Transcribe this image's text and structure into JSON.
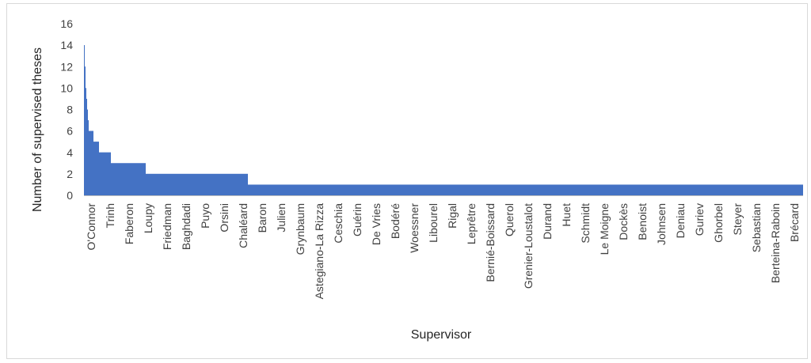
{
  "chart_data": {
    "type": "area",
    "xlabel": "Supervisor",
    "ylabel": "Number of supervised theses",
    "ylim": [
      0,
      16
    ],
    "yticks": [
      0,
      2,
      4,
      6,
      8,
      10,
      12,
      14,
      16
    ],
    "grid": false,
    "legend": "none",
    "fill_color": "#4472c4",
    "x_tick_labels": [
      "O'Connor",
      "Trinh",
      "Faberon",
      "Loupy",
      "Friedman",
      "Baghdadi",
      "Puyo",
      "Orsini",
      "Chaléard",
      "Baron",
      "Julien",
      "Grynbaum",
      "Astegiano-La Rizza",
      "Ceschia",
      "Guérin",
      "De Vries",
      "Bodéré",
      "Woessner",
      "Libourel",
      "Rigal",
      "Leprêtre",
      "Bernié-Boissard",
      "Querol",
      "Grenier-Loustalot",
      "Durand",
      "Huet",
      "Schmidt",
      "Le Moigne",
      "Dockès",
      "Benoist",
      "Johnsen",
      "Deniau",
      "Guriev",
      "Ghorbel",
      "Steyer",
      "Sebastian",
      "Berteina-Raboin",
      "Brécard"
    ],
    "series": [
      {
        "segments": [
          {
            "from": "O'Connor",
            "to": "O'Connor",
            "value": 14
          },
          {
            "from": "O'Connor",
            "to": "O'Connor",
            "value": 12
          },
          {
            "from": "O'Connor",
            "to": "O'Connor",
            "value": 10
          },
          {
            "from": "O'Connor",
            "to": "O'Connor",
            "value": 9
          },
          {
            "from": "O'Connor",
            "to": "O'Connor",
            "value": 8
          },
          {
            "from": "O'Connor",
            "to": "O'Connor",
            "value": 7
          },
          {
            "from": "O'Connor",
            "to": "Trinh",
            "value": 6
          },
          {
            "from": "Trinh",
            "to": "Trinh",
            "value": 5
          },
          {
            "from": "Trinh",
            "to": "Faberon",
            "value": 4
          },
          {
            "from": "Faberon",
            "to": "Loupy",
            "value": 3
          },
          {
            "from": "Loupy",
            "to": "Chaléard",
            "value": 2
          },
          {
            "from": "Chaléard",
            "to": "Brécard",
            "value": 1
          }
        ]
      }
    ]
  }
}
